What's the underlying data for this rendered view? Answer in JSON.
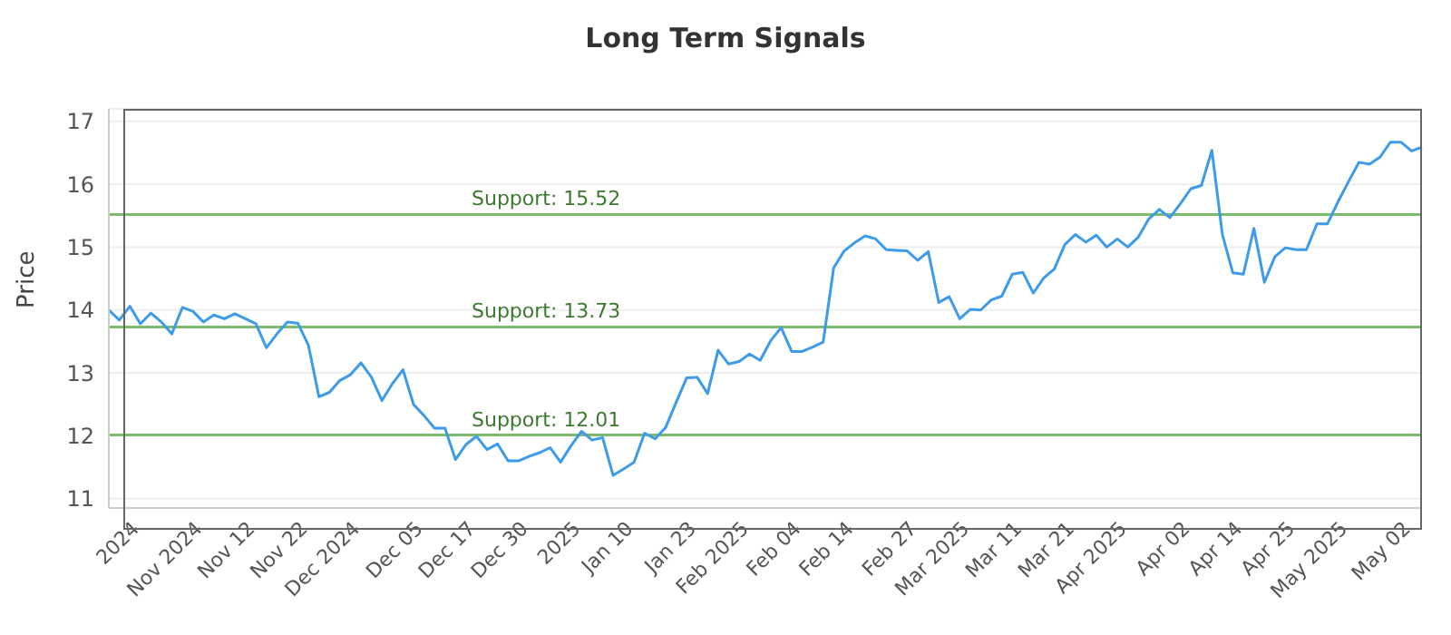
{
  "chart_data": {
    "type": "line",
    "title": "Long Term Signals",
    "ylabel": "Price",
    "categories": [
      null,
      null,
      null,
      "2024",
      null,
      null,
      null,
      null,
      null,
      "Nov 2024",
      null,
      null,
      null,
      null,
      "Nov 12",
      null,
      null,
      null,
      null,
      "Nov 22",
      null,
      null,
      null,
      null,
      "Dec 2024",
      null,
      null,
      null,
      null,
      null,
      "Dec 05",
      null,
      null,
      null,
      null,
      "Dec 17",
      null,
      null,
      null,
      null,
      "Dec 30",
      null,
      null,
      null,
      null,
      "2025",
      null,
      null,
      null,
      null,
      "Jan 10",
      null,
      null,
      null,
      null,
      null,
      "Jan 23",
      null,
      null,
      null,
      null,
      "Feb 2025",
      null,
      null,
      null,
      null,
      "Feb 04",
      null,
      null,
      null,
      null,
      "Feb 14",
      null,
      null,
      null,
      null,
      null,
      "Feb 27",
      null,
      null,
      null,
      null,
      "Mar 2025",
      null,
      null,
      null,
      null,
      "Mar 11",
      null,
      null,
      null,
      null,
      "Mar 21",
      null,
      null,
      null,
      null,
      "Apr 2025",
      null,
      null,
      null,
      null,
      null,
      "Apr 02",
      null,
      null,
      null,
      null,
      "Apr 14",
      null,
      null,
      null,
      null,
      "Apr 25",
      null,
      null,
      null,
      null,
      "May 2025",
      null,
      null,
      null,
      null,
      null,
      "May 02",
      null
    ],
    "series": [
      {
        "color": "#3d9be9",
        "values": [
          14.0,
          13.84,
          14.06,
          13.78,
          13.95,
          13.81,
          13.62,
          14.04,
          13.98,
          13.81,
          13.92,
          13.86,
          13.94,
          13.86,
          13.78,
          13.4,
          13.62,
          13.81,
          13.79,
          13.44,
          12.62,
          12.69,
          12.88,
          12.97,
          13.16,
          12.93,
          12.56,
          12.83,
          13.05,
          12.5,
          12.32,
          12.12,
          12.12,
          11.62,
          11.86,
          11.99,
          11.78,
          11.87,
          11.6,
          11.6,
          11.67,
          11.73,
          11.81,
          11.58,
          11.84,
          12.07,
          11.93,
          11.97,
          11.37,
          11.47,
          11.58,
          12.04,
          11.95,
          12.13,
          12.53,
          12.92,
          12.93,
          12.67,
          13.36,
          13.14,
          13.18,
          13.3,
          13.2,
          13.51,
          13.72,
          13.34,
          13.34,
          13.41,
          13.49,
          14.67,
          14.94,
          15.07,
          15.18,
          15.13,
          14.96,
          14.95,
          14.94,
          14.79,
          14.93,
          14.12,
          14.21,
          13.86,
          14.01,
          14.0,
          14.16,
          14.22,
          14.57,
          14.6,
          14.27,
          14.51,
          14.65,
          15.04,
          15.2,
          15.08,
          15.19,
          15.0,
          15.13,
          15.0,
          15.16,
          15.45,
          15.6,
          15.47,
          15.69,
          15.93,
          15.98,
          16.54,
          15.2,
          14.59,
          14.57,
          15.3,
          14.44,
          14.85,
          14.99,
          14.96,
          14.96,
          15.37,
          15.37,
          15.72,
          16.04,
          16.35,
          16.32,
          16.43,
          16.67,
          16.67,
          16.53,
          16.59
        ]
      }
    ],
    "ylim": [
      10.85,
      17.2
    ],
    "yticks": [
      11,
      12,
      13,
      14,
      15,
      16,
      17
    ],
    "grid": "y",
    "ref_lines": [
      {
        "axis": "y",
        "value": 15.52,
        "label": "Support: 15.52",
        "color": "#7dbb6c"
      },
      {
        "axis": "y",
        "value": 13.73,
        "label": "Support: 13.73",
        "color": "#7dbb6c"
      },
      {
        "axis": "y",
        "value": 12.01,
        "label": "Support: 12.01",
        "color": "#7dbb6c"
      }
    ]
  }
}
